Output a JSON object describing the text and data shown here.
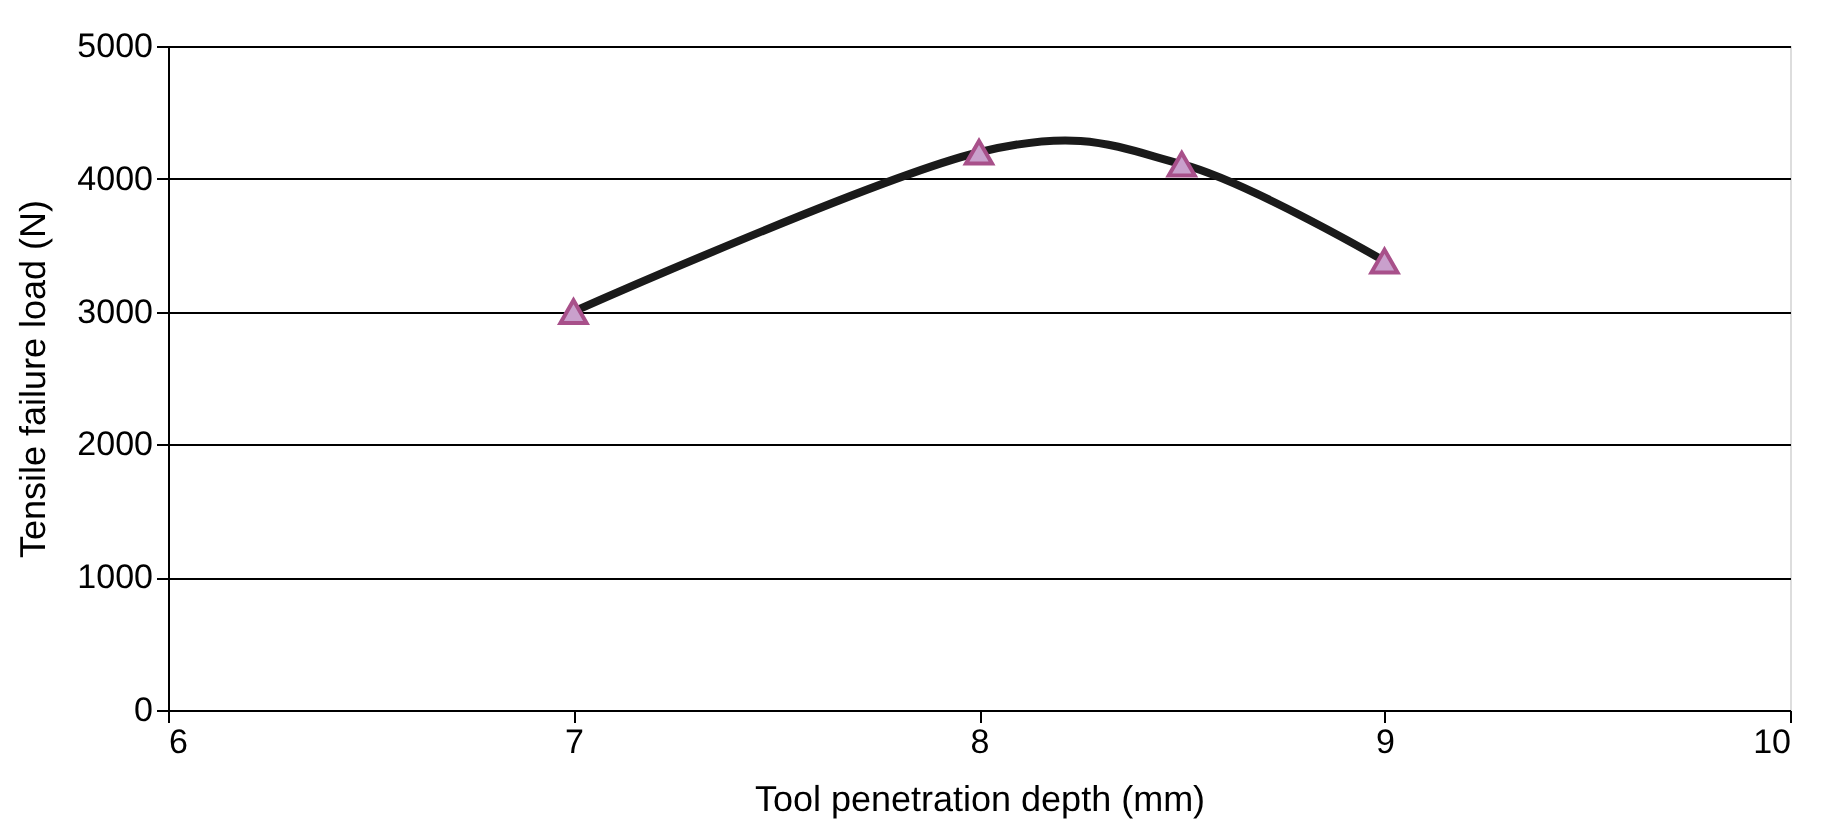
{
  "chart_data": {
    "type": "line",
    "xlabel": "Tool penetration depth (mm)",
    "ylabel": "Tensile failure load (N)",
    "x": [
      7,
      8,
      8.5,
      9
    ],
    "series": [
      {
        "color": "#1a1a1a",
        "values": [
          3000,
          4200,
          4110,
          3380
        ]
      }
    ],
    "xlim": [
      6,
      10
    ],
    "xticks": [
      6,
      7,
      8,
      9,
      10
    ],
    "ylim": [
      0,
      5000
    ],
    "yticks": [
      0,
      1000,
      2000,
      3000,
      4000,
      5000
    ],
    "grid": "y",
    "marker": "triangle",
    "line_style": "solid"
  }
}
